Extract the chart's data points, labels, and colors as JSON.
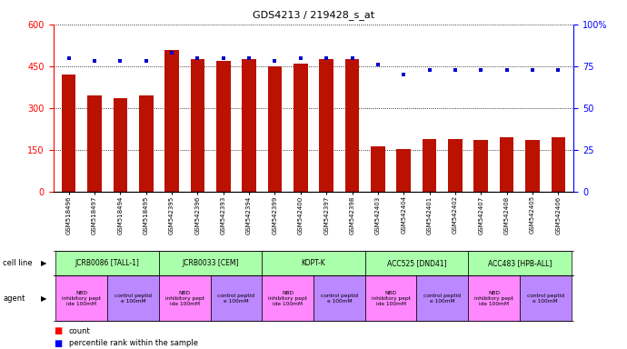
{
  "title": "GDS4213 / 219428_s_at",
  "samples": [
    "GSM518496",
    "GSM518497",
    "GSM518494",
    "GSM518495",
    "GSM542395",
    "GSM542396",
    "GSM542393",
    "GSM542394",
    "GSM542399",
    "GSM542400",
    "GSM542397",
    "GSM542398",
    "GSM542403",
    "GSM542404",
    "GSM542401",
    "GSM542402",
    "GSM542407",
    "GSM542408",
    "GSM542405",
    "GSM542406"
  ],
  "counts": [
    420,
    345,
    335,
    345,
    510,
    475,
    470,
    475,
    450,
    460,
    475,
    475,
    165,
    155,
    190,
    190,
    185,
    195,
    185,
    195
  ],
  "percentile_ranks": [
    80,
    78,
    78,
    78,
    83,
    80,
    80,
    80,
    78,
    80,
    80,
    80,
    76,
    70,
    73,
    73,
    73,
    73,
    73,
    73
  ],
  "cell_lines": [
    {
      "label": "JCRB0086 [TALL-1]",
      "start": 0,
      "end": 4,
      "color": "#aaffaa"
    },
    {
      "label": "JCRB0033 [CEM]",
      "start": 4,
      "end": 8,
      "color": "#aaffaa"
    },
    {
      "label": "KOPT-K",
      "start": 8,
      "end": 12,
      "color": "#aaffaa"
    },
    {
      "label": "ACC525 [DND41]",
      "start": 12,
      "end": 16,
      "color": "#aaffaa"
    },
    {
      "label": "ACC483 [HPB-ALL]",
      "start": 16,
      "end": 20,
      "color": "#aaffaa"
    }
  ],
  "agents": [
    {
      "label": "NBD\ninhibitory pept\nide 100mM",
      "start": 0,
      "end": 2,
      "color": "#ff88ff"
    },
    {
      "label": "control peptid\ne 100mM",
      "start": 2,
      "end": 4,
      "color": "#bb88ff"
    },
    {
      "label": "NBD\ninhibitory pept\nide 100mM",
      "start": 4,
      "end": 6,
      "color": "#ff88ff"
    },
    {
      "label": "control peptid\ne 100mM",
      "start": 6,
      "end": 8,
      "color": "#bb88ff"
    },
    {
      "label": "NBD\ninhibitory pept\nide 100mM",
      "start": 8,
      "end": 10,
      "color": "#ff88ff"
    },
    {
      "label": "control peptid\ne 100mM",
      "start": 10,
      "end": 12,
      "color": "#bb88ff"
    },
    {
      "label": "NBD\ninhibitory pept\nide 100mM",
      "start": 12,
      "end": 14,
      "color": "#ff88ff"
    },
    {
      "label": "control peptid\ne 100mM",
      "start": 14,
      "end": 16,
      "color": "#bb88ff"
    },
    {
      "label": "NBD\ninhibitory pept\nide 100mM",
      "start": 16,
      "end": 18,
      "color": "#ff88ff"
    },
    {
      "label": "control peptid\ne 100mM",
      "start": 18,
      "end": 20,
      "color": "#bb88ff"
    }
  ],
  "ylim_left": [
    0,
    600
  ],
  "ylim_right": [
    0,
    100
  ],
  "yticks_left": [
    0,
    150,
    300,
    450,
    600
  ],
  "yticks_right": [
    0,
    25,
    50,
    75,
    100
  ],
  "ytick_labels_right": [
    "0",
    "25",
    "50",
    "75",
    "100%"
  ],
  "bar_color": "#bb1100",
  "dot_color": "#0000cc",
  "background_color": "#ffffff",
  "grid_color": "#000000",
  "cell_line_row_label": "cell line",
  "agent_row_label": "agent",
  "legend_count": "count",
  "legend_percentile": "percentile rank within the sample"
}
